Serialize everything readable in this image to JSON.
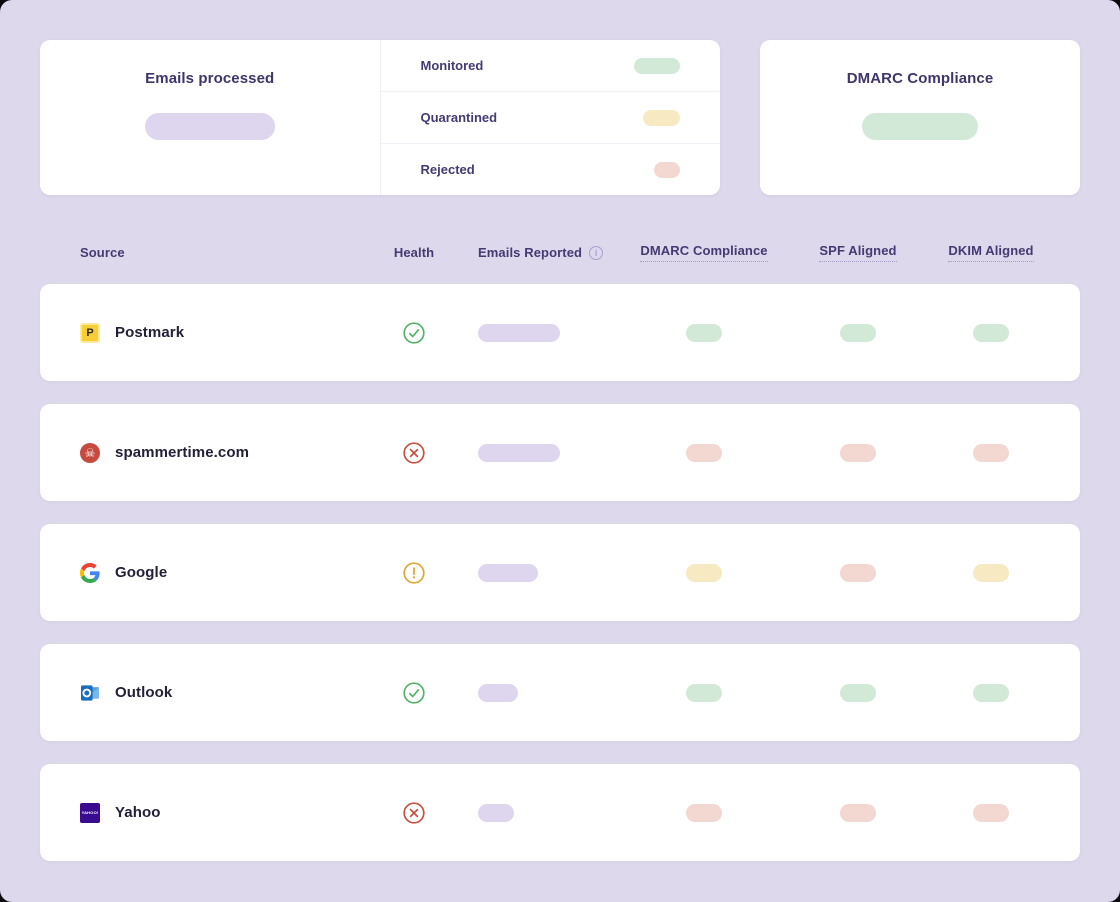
{
  "colors": {
    "page_bg": "#ded8ec",
    "card_bg": "#ffffff",
    "heading_text": "#40356a",
    "source_text": "#232038",
    "status": {
      "pass": "#d3e9d8",
      "fail": "#f2d8d1",
      "warn": "#f7eac3",
      "neutral": "#ddd6ee"
    },
    "health": {
      "pass": "#56b169",
      "fail": "#c8503f",
      "warn": "#dfa637"
    }
  },
  "summary": {
    "emails_processed": {
      "title": "Emails processed",
      "pill_status": "neutral",
      "pill_width": 130
    },
    "breakdown": [
      {
        "label": "Monitored",
        "status": "pass",
        "pill_width": 46
      },
      {
        "label": "Quarantined",
        "status": "warn",
        "pill_width": 37
      },
      {
        "label": "Rejected",
        "status": "fail",
        "pill_width": 26
      }
    ],
    "dmarc_compliance": {
      "title": "DMARC Compliance",
      "pill_status": "pass",
      "pill_width": 116
    }
  },
  "table": {
    "columns": [
      {
        "label": "Source",
        "underline": false,
        "info": false
      },
      {
        "label": "Health",
        "underline": false,
        "info": false
      },
      {
        "label": "Emails Reported",
        "underline": false,
        "info": true
      },
      {
        "label": "DMARC Compliance",
        "underline": true,
        "info": false
      },
      {
        "label": "SPF Aligned",
        "underline": true,
        "info": false
      },
      {
        "label": "DKIM Aligned",
        "underline": true,
        "info": false
      }
    ],
    "rows": [
      {
        "source": "Postmark",
        "icon": "postmark-logo",
        "health": "pass",
        "emails_pill_width": 82,
        "dmarc": "pass",
        "spf": "pass",
        "dkim": "pass"
      },
      {
        "source": "spammertime.com",
        "icon": "spam-skull",
        "health": "fail",
        "emails_pill_width": 82,
        "dmarc": "fail",
        "spf": "fail",
        "dkim": "fail"
      },
      {
        "source": "Google",
        "icon": "google-logo",
        "health": "warn",
        "emails_pill_width": 60,
        "dmarc": "warn",
        "spf": "fail",
        "dkim": "warn"
      },
      {
        "source": "Outlook",
        "icon": "outlook-logo",
        "health": "pass",
        "emails_pill_width": 40,
        "dmarc": "pass",
        "spf": "pass",
        "dkim": "pass"
      },
      {
        "source": "Yahoo",
        "icon": "yahoo-logo",
        "health": "fail",
        "emails_pill_width": 36,
        "dmarc": "fail",
        "spf": "fail",
        "dkim": "fail"
      }
    ]
  }
}
